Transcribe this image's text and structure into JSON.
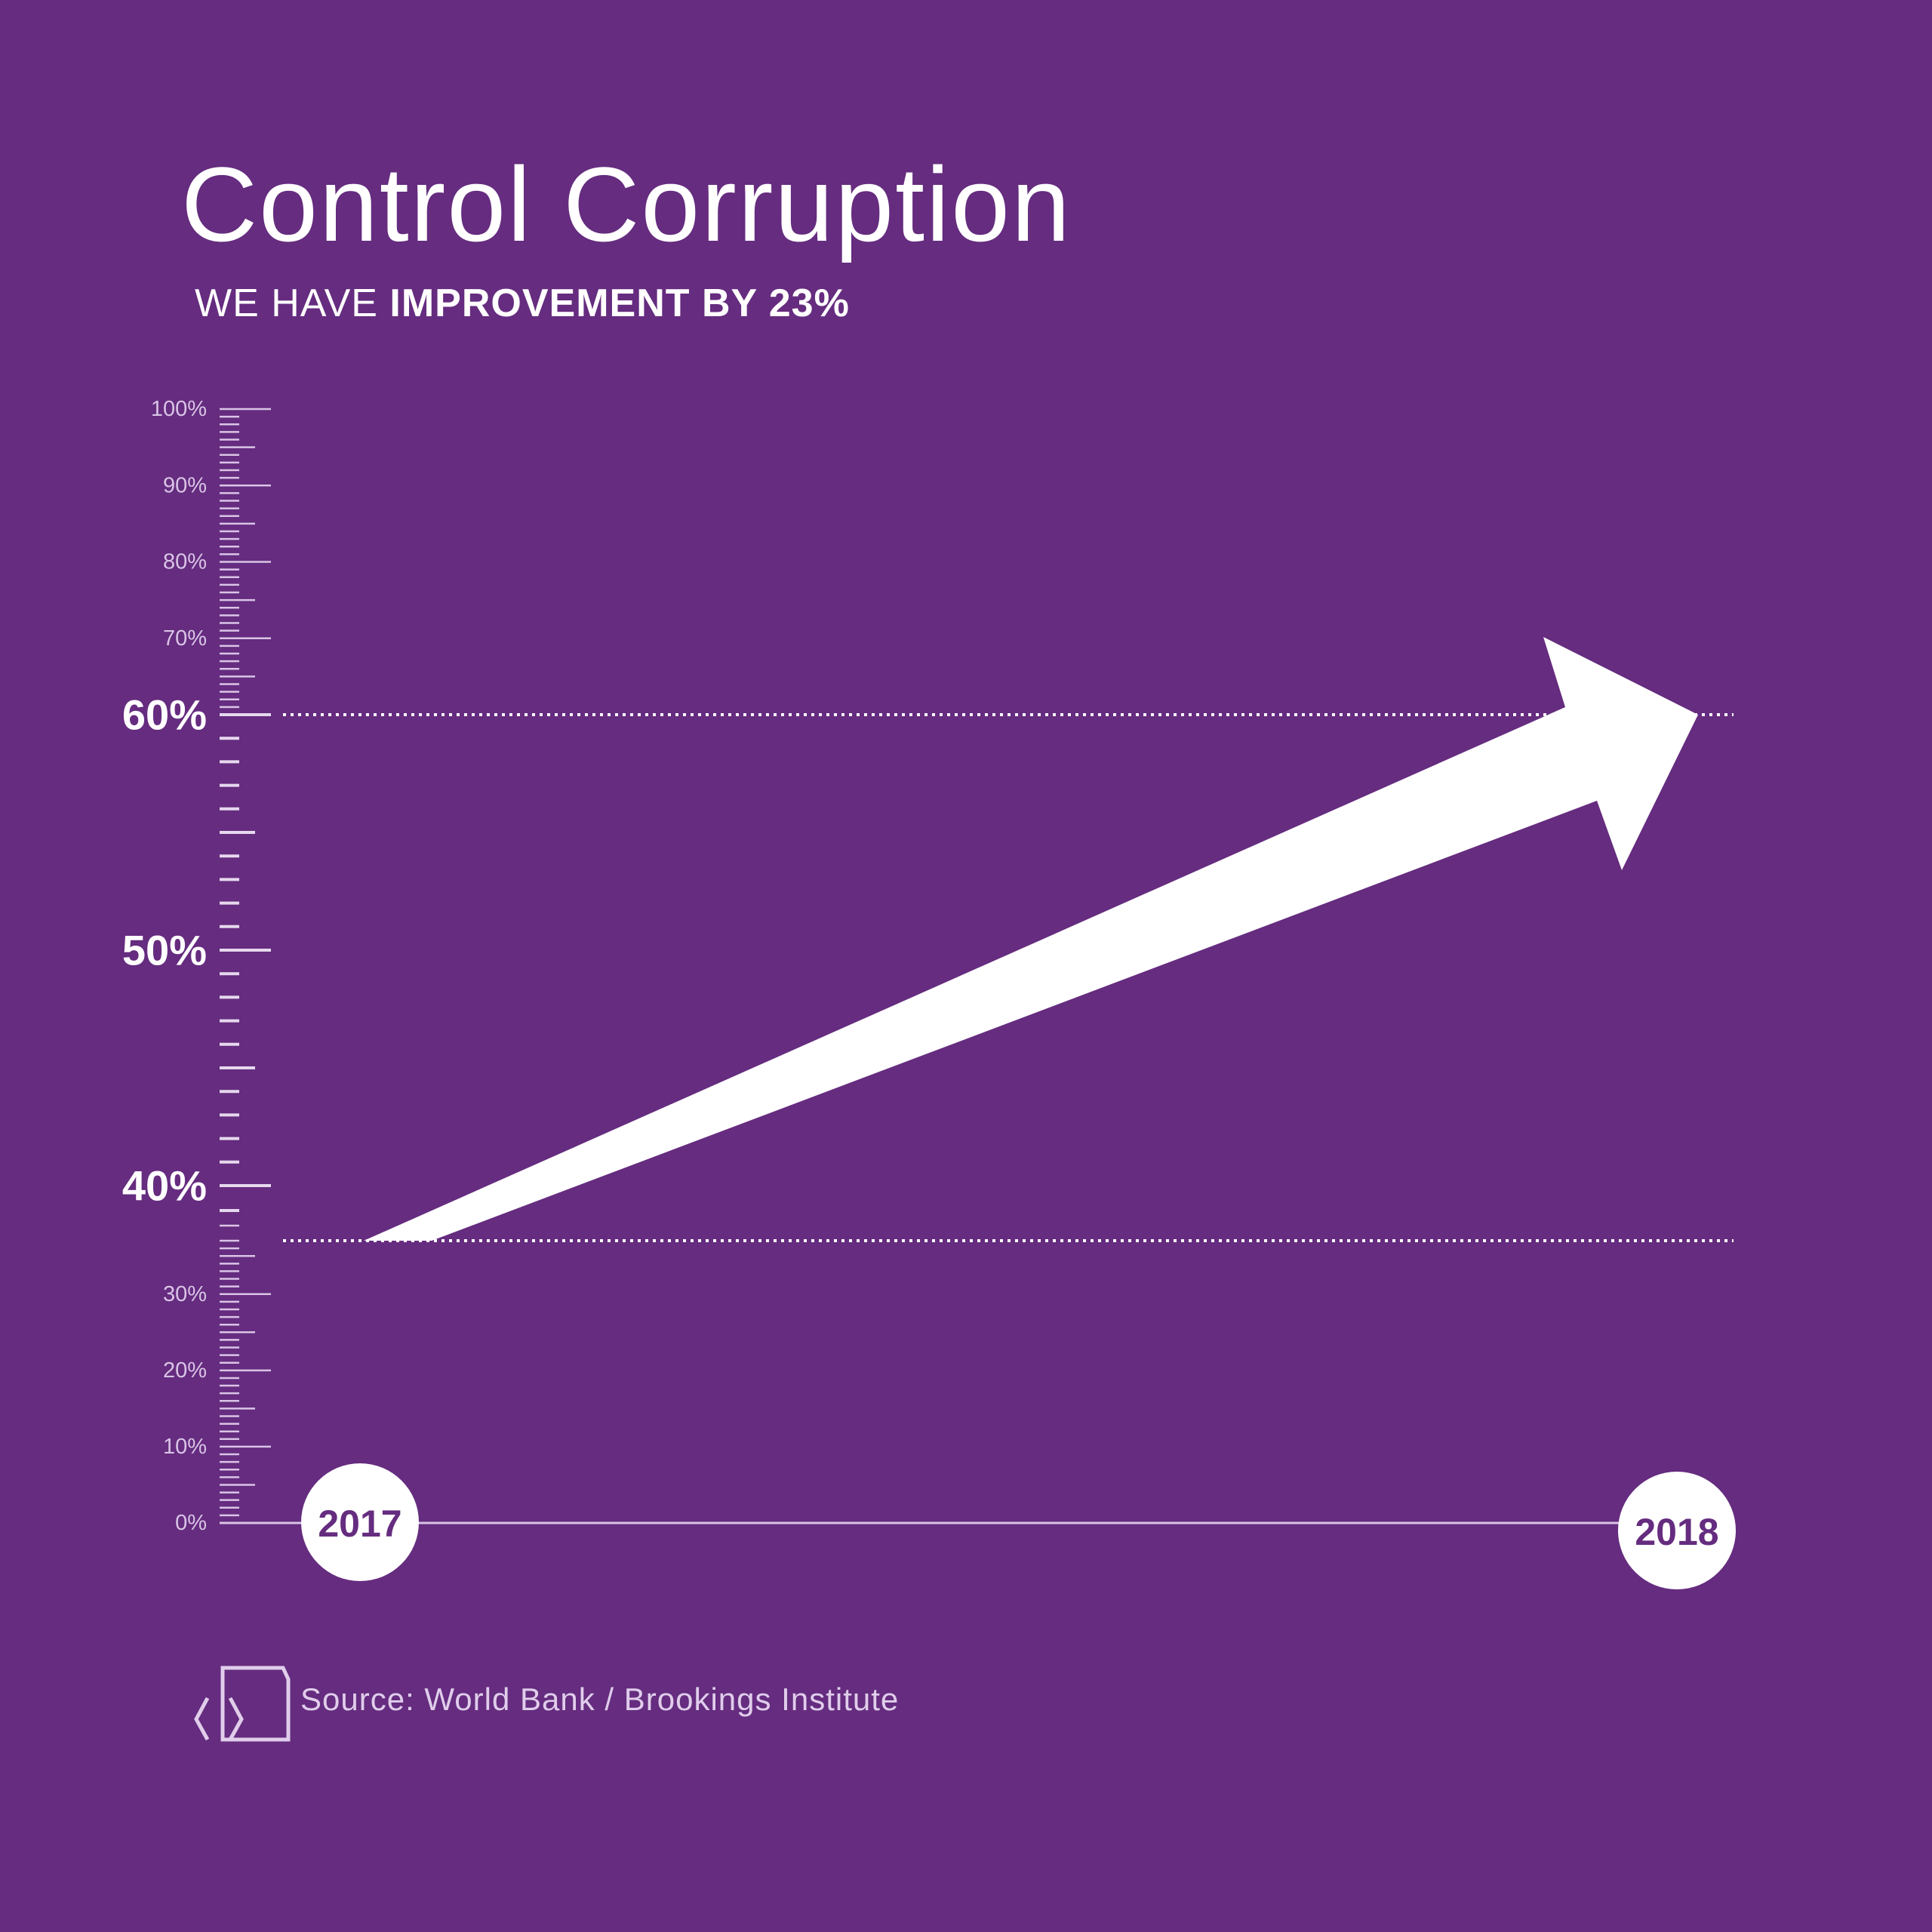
{
  "colors": {
    "background": "#652c7f",
    "foreground": "#ffffff",
    "muted": "#d9c4e6"
  },
  "chart_data": {
    "type": "line",
    "title": "Control Corruption",
    "subtitle": {
      "prefix": "WE HAVE ",
      "emphasis": "IMPROVEMENT BY 23%"
    },
    "categories": [
      "2017",
      "2018"
    ],
    "values": [
      37,
      60
    ],
    "ylim": [
      0,
      100
    ],
    "y_ticks_minor": [
      "0%",
      "10%",
      "20%",
      "30%",
      "70%",
      "80%",
      "90%",
      "100%"
    ],
    "y_ticks_major": [
      "40%",
      "50%",
      "60%"
    ],
    "reference_lines": [
      37,
      60
    ],
    "marker": "arrow"
  },
  "source": {
    "text": "Source: World Bank / Brookings Institute",
    "icon": "code-document-icon"
  }
}
